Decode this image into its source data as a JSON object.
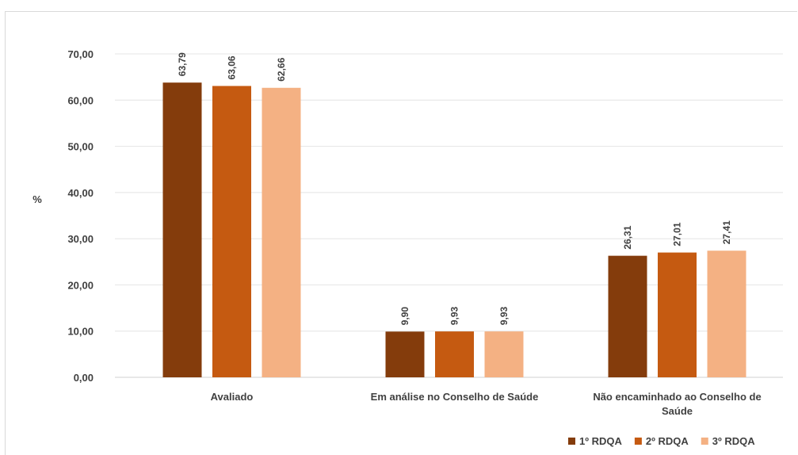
{
  "chart_data": {
    "type": "bar",
    "title": "",
    "xlabel": "",
    "ylabel": "%",
    "ylim": [
      0,
      70
    ],
    "yticks": [
      "0,00",
      "10,00",
      "20,00",
      "30,00",
      "40,00",
      "50,00",
      "60,00",
      "70,00"
    ],
    "grid": true,
    "legend_position": "bottom-right",
    "categories": [
      [
        "Avaliado"
      ],
      [
        "Em análise no Conselho de Saúde"
      ],
      [
        "Não encaminhado ao Conselho de",
        "Saúde"
      ]
    ],
    "series": [
      {
        "name": "1º RDQA",
        "color": "#843c0c",
        "values": [
          63.79,
          9.9,
          26.31
        ],
        "labels": [
          "63,79",
          "9,90",
          "26,31"
        ]
      },
      {
        "name": "2º RDQA",
        "color": "#c55a11",
        "values": [
          63.06,
          9.93,
          27.01
        ],
        "labels": [
          "63,06",
          "9,93",
          "27,01"
        ]
      },
      {
        "name": "3º RDQA",
        "color": "#f4b183",
        "values": [
          62.66,
          9.93,
          27.41
        ],
        "labels": [
          "62,66",
          "9,93",
          "27,41"
        ]
      }
    ]
  }
}
